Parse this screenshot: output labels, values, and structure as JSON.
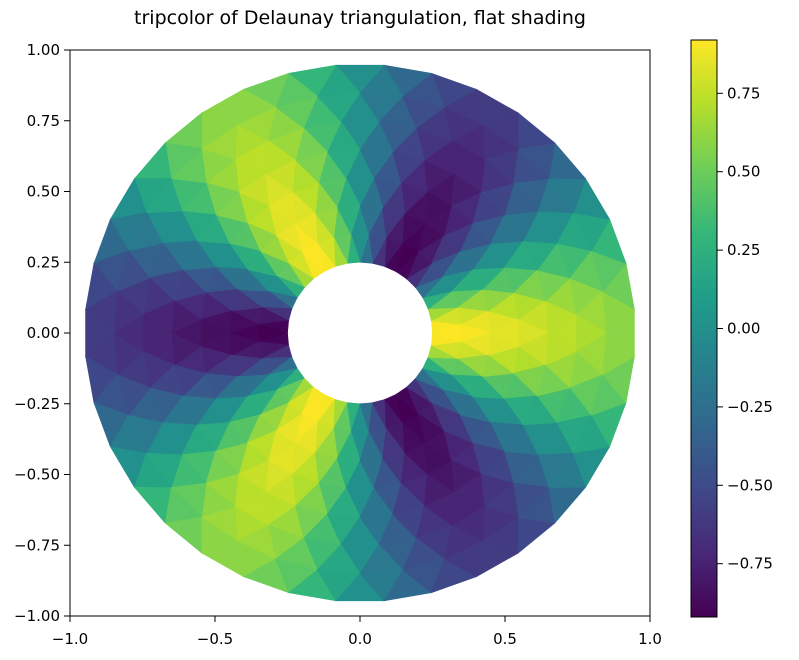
{
  "chart_data": [
    {
      "type": "heatmap",
      "subtype": "tripcolor",
      "title": "tripcolor of Delaunay triangulation, flat shading",
      "xlabel": "",
      "ylabel": "",
      "xlim": [
        -1.0,
        1.0
      ],
      "ylim": [
        -1.0,
        1.0
      ],
      "xticks": [
        -1.0,
        -0.5,
        0.0,
        0.5,
        1.0
      ],
      "xtick_labels": [
        "−1.0",
        "−0.5",
        "0.0",
        "0.5",
        "1.0"
      ],
      "yticks": [
        1.0,
        0.75,
        0.5,
        0.25,
        0.0,
        -0.25,
        -0.5,
        -0.75,
        -1.0
      ],
      "ytick_labels": [
        "1.00",
        "0.75",
        "0.50",
        "0.25",
        "0.00",
        "−0.25",
        "−0.50",
        "−0.75",
        "−1.00"
      ],
      "grid": false,
      "shading": "flat",
      "mesh": {
        "n_radii": 8,
        "n_angles": 36,
        "min_radius": 0.25,
        "max_radius": 0.95
      },
      "field": "cos(r) * cos(3 * theta)"
    },
    {
      "type": "colorbar",
      "colormap": "viridis",
      "vmin": -0.92,
      "vmax": 0.92,
      "ticks": [
        0.75,
        0.5,
        0.25,
        0.0,
        -0.25,
        -0.5,
        -0.75
      ],
      "tick_labels": [
        "0.75",
        "0.50",
        "0.25",
        "0.00",
        "−0.25",
        "−0.50",
        "−0.75"
      ]
    }
  ],
  "colormap_stops": [
    "#440154",
    "#482878",
    "#3e4989",
    "#31688e",
    "#26828e",
    "#1f9e89",
    "#35b779",
    "#6ece58",
    "#b5de2b",
    "#fde725"
  ]
}
